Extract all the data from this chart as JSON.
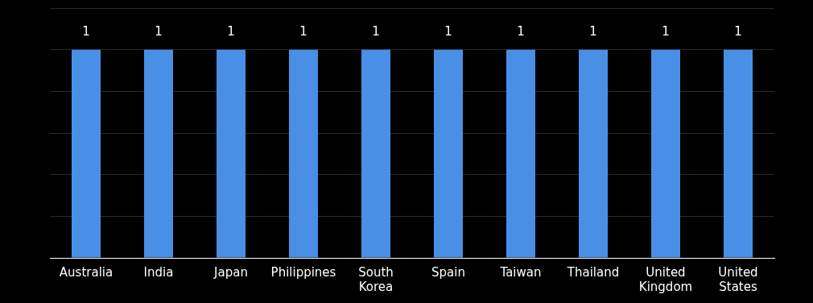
{
  "chart_data": {
    "type": "bar",
    "categories": [
      "Australia",
      "India",
      "Japan",
      "Philippines",
      "South Korea",
      "Spain",
      "Taiwan",
      "Thailand",
      "United Kingdom",
      "United States"
    ],
    "values": [
      1,
      1,
      1,
      1,
      1,
      1,
      1,
      1,
      1,
      1
    ],
    "color": "#4a8fe6",
    "ylim": [
      0,
      1.2
    ],
    "yticks": [
      {
        "value": 0,
        "label": null
      },
      {
        "value": 0.2,
        "label": null
      },
      {
        "value": 0.4,
        "label": null
      },
      {
        "value": 0.6,
        "label": null
      },
      {
        "value": 0.8,
        "label": null
      },
      {
        "value": 1,
        "label": null
      },
      {
        "value": 1.2,
        "label": null
      }
    ],
    "tick_labels": "x",
    "grid": "y",
    "data_labels": true,
    "legend": false
  }
}
